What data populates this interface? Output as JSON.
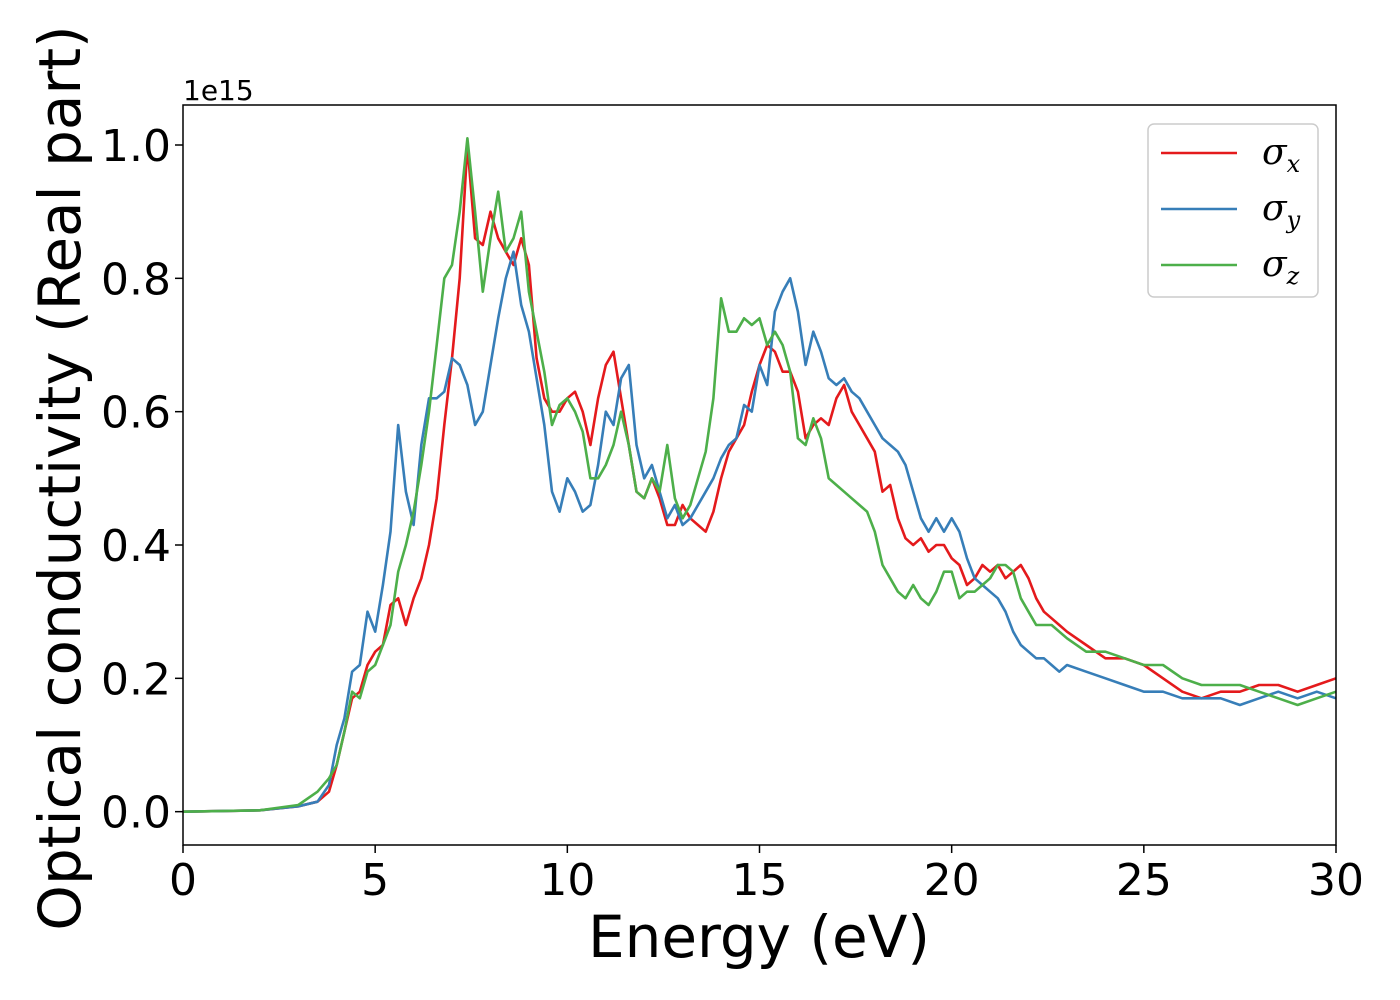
{
  "chart_data": {
    "type": "line",
    "xlabel": "Energy (eV)",
    "ylabel": "Optical conductivity (Real part)",
    "y_offset_label": "1e15",
    "xlim": [
      0,
      30
    ],
    "ylim": [
      -0.05,
      1.06
    ],
    "x_ticks": [
      0,
      5,
      10,
      15,
      20,
      25,
      30
    ],
    "y_ticks": [
      0.0,
      0.2,
      0.4,
      0.6,
      0.8,
      1.0
    ],
    "x_tick_labels": [
      "0",
      "5",
      "10",
      "15",
      "20",
      "25",
      "30"
    ],
    "y_tick_labels": [
      "0.0",
      "0.2",
      "0.4",
      "0.6",
      "0.8",
      "1.0"
    ],
    "grid": false,
    "legend_position": "top-right",
    "series": [
      {
        "name": "σ",
        "subscript": "x",
        "color": "#e41a1c",
        "x": [
          0,
          2,
          3,
          3.5,
          3.8,
          4.0,
          4.2,
          4.4,
          4.6,
          4.8,
          5.0,
          5.2,
          5.4,
          5.6,
          5.8,
          6.0,
          6.2,
          6.4,
          6.6,
          6.8,
          7.0,
          7.2,
          7.4,
          7.6,
          7.8,
          8.0,
          8.2,
          8.4,
          8.6,
          8.8,
          9.0,
          9.2,
          9.4,
          9.6,
          9.8,
          10.0,
          10.2,
          10.4,
          10.6,
          10.8,
          11.0,
          11.2,
          11.4,
          11.6,
          11.8,
          12.0,
          12.2,
          12.4,
          12.6,
          12.8,
          13.0,
          13.2,
          13.4,
          13.6,
          13.8,
          14.0,
          14.2,
          14.4,
          14.6,
          14.8,
          15.0,
          15.2,
          15.4,
          15.6,
          15.8,
          16.0,
          16.2,
          16.4,
          16.6,
          16.8,
          17.0,
          17.2,
          17.4,
          17.6,
          17.8,
          18.0,
          18.2,
          18.4,
          18.6,
          18.8,
          19.0,
          19.2,
          19.4,
          19.6,
          19.8,
          20.0,
          20.2,
          20.4,
          20.6,
          20.8,
          21.0,
          21.2,
          21.4,
          21.6,
          21.8,
          22.0,
          22.2,
          22.4,
          22.6,
          22.8,
          23.0,
          23.5,
          24.0,
          24.5,
          25.0,
          25.5,
          26.0,
          26.5,
          27.0,
          27.5,
          28.0,
          28.5,
          29.0,
          29.5,
          30.0
        ],
        "y": [
          0,
          0.002,
          0.008,
          0.015,
          0.03,
          0.07,
          0.12,
          0.17,
          0.18,
          0.22,
          0.24,
          0.25,
          0.31,
          0.32,
          0.28,
          0.32,
          0.35,
          0.4,
          0.47,
          0.58,
          0.68,
          0.8,
          1.0,
          0.86,
          0.85,
          0.9,
          0.86,
          0.84,
          0.82,
          0.86,
          0.82,
          0.68,
          0.62,
          0.6,
          0.6,
          0.62,
          0.63,
          0.6,
          0.55,
          0.62,
          0.67,
          0.69,
          0.62,
          0.55,
          0.48,
          0.47,
          0.5,
          0.47,
          0.43,
          0.43,
          0.46,
          0.44,
          0.43,
          0.42,
          0.45,
          0.5,
          0.54,
          0.56,
          0.58,
          0.63,
          0.67,
          0.7,
          0.69,
          0.66,
          0.66,
          0.63,
          0.56,
          0.58,
          0.59,
          0.58,
          0.62,
          0.64,
          0.6,
          0.58,
          0.56,
          0.54,
          0.48,
          0.49,
          0.44,
          0.41,
          0.4,
          0.41,
          0.39,
          0.4,
          0.4,
          0.38,
          0.37,
          0.34,
          0.35,
          0.37,
          0.36,
          0.37,
          0.35,
          0.36,
          0.37,
          0.35,
          0.32,
          0.3,
          0.29,
          0.28,
          0.27,
          0.25,
          0.23,
          0.23,
          0.22,
          0.2,
          0.18,
          0.17,
          0.18,
          0.18,
          0.19,
          0.19,
          0.18,
          0.19,
          0.2
        ]
      },
      {
        "name": "σ",
        "subscript": "y",
        "color": "#377eb8",
        "x": [
          0,
          2,
          3,
          3.5,
          3.8,
          4.0,
          4.2,
          4.4,
          4.6,
          4.8,
          5.0,
          5.2,
          5.4,
          5.6,
          5.8,
          6.0,
          6.2,
          6.4,
          6.6,
          6.8,
          7.0,
          7.2,
          7.4,
          7.6,
          7.8,
          8.0,
          8.2,
          8.4,
          8.6,
          8.8,
          9.0,
          9.2,
          9.4,
          9.6,
          9.8,
          10.0,
          10.2,
          10.4,
          10.6,
          10.8,
          11.0,
          11.2,
          11.4,
          11.6,
          11.8,
          12.0,
          12.2,
          12.4,
          12.6,
          12.8,
          13.0,
          13.2,
          13.4,
          13.6,
          13.8,
          14.0,
          14.2,
          14.4,
          14.6,
          14.8,
          15.0,
          15.2,
          15.4,
          15.6,
          15.8,
          16.0,
          16.2,
          16.4,
          16.6,
          16.8,
          17.0,
          17.2,
          17.4,
          17.6,
          17.8,
          18.0,
          18.2,
          18.4,
          18.6,
          18.8,
          19.0,
          19.2,
          19.4,
          19.6,
          19.8,
          20.0,
          20.2,
          20.4,
          20.6,
          20.8,
          21.0,
          21.2,
          21.4,
          21.6,
          21.8,
          22.0,
          22.2,
          22.4,
          22.6,
          22.8,
          23.0,
          23.5,
          24.0,
          24.5,
          25.0,
          25.5,
          26.0,
          26.5,
          27.0,
          27.5,
          28.0,
          28.5,
          29.0,
          29.5,
          30.0
        ],
        "y": [
          0,
          0.002,
          0.008,
          0.015,
          0.04,
          0.1,
          0.14,
          0.21,
          0.22,
          0.3,
          0.27,
          0.34,
          0.42,
          0.58,
          0.48,
          0.43,
          0.55,
          0.62,
          0.62,
          0.63,
          0.68,
          0.67,
          0.64,
          0.58,
          0.6,
          0.67,
          0.74,
          0.8,
          0.84,
          0.76,
          0.72,
          0.65,
          0.58,
          0.48,
          0.45,
          0.5,
          0.48,
          0.45,
          0.46,
          0.52,
          0.6,
          0.58,
          0.65,
          0.67,
          0.55,
          0.5,
          0.52,
          0.48,
          0.44,
          0.46,
          0.43,
          0.44,
          0.46,
          0.48,
          0.5,
          0.53,
          0.55,
          0.56,
          0.61,
          0.6,
          0.67,
          0.64,
          0.75,
          0.78,
          0.8,
          0.75,
          0.67,
          0.72,
          0.69,
          0.65,
          0.64,
          0.65,
          0.63,
          0.62,
          0.6,
          0.58,
          0.56,
          0.55,
          0.54,
          0.52,
          0.48,
          0.44,
          0.42,
          0.44,
          0.42,
          0.44,
          0.42,
          0.38,
          0.35,
          0.34,
          0.33,
          0.32,
          0.3,
          0.27,
          0.25,
          0.24,
          0.23,
          0.23,
          0.22,
          0.21,
          0.22,
          0.21,
          0.2,
          0.19,
          0.18,
          0.18,
          0.17,
          0.17,
          0.17,
          0.16,
          0.17,
          0.18,
          0.17,
          0.18,
          0.17
        ]
      },
      {
        "name": "σ",
        "subscript": "z",
        "color": "#4daf4a",
        "x": [
          0,
          2,
          3,
          3.5,
          3.8,
          4.0,
          4.2,
          4.4,
          4.6,
          4.8,
          5.0,
          5.2,
          5.4,
          5.6,
          5.8,
          6.0,
          6.2,
          6.4,
          6.6,
          6.8,
          7.0,
          7.2,
          7.4,
          7.6,
          7.8,
          8.0,
          8.2,
          8.4,
          8.6,
          8.8,
          9.0,
          9.2,
          9.4,
          9.6,
          9.8,
          10.0,
          10.2,
          10.4,
          10.6,
          10.8,
          11.0,
          11.2,
          11.4,
          11.6,
          11.8,
          12.0,
          12.2,
          12.4,
          12.6,
          12.8,
          13.0,
          13.2,
          13.4,
          13.6,
          13.8,
          14.0,
          14.2,
          14.4,
          14.6,
          14.8,
          15.0,
          15.2,
          15.4,
          15.6,
          15.8,
          16.0,
          16.2,
          16.4,
          16.6,
          16.8,
          17.0,
          17.2,
          17.4,
          17.6,
          17.8,
          18.0,
          18.2,
          18.4,
          18.6,
          18.8,
          19.0,
          19.2,
          19.4,
          19.6,
          19.8,
          20.0,
          20.2,
          20.4,
          20.6,
          20.8,
          21.0,
          21.2,
          21.4,
          21.6,
          21.8,
          22.0,
          22.2,
          22.4,
          22.6,
          22.8,
          23.0,
          23.5,
          24.0,
          24.5,
          25.0,
          25.5,
          26.0,
          26.5,
          27.0,
          27.5,
          28.0,
          28.5,
          29.0,
          29.5,
          30.0
        ],
        "y": [
          0,
          0.002,
          0.01,
          0.03,
          0.05,
          0.07,
          0.12,
          0.18,
          0.17,
          0.21,
          0.22,
          0.25,
          0.28,
          0.36,
          0.4,
          0.45,
          0.52,
          0.6,
          0.7,
          0.8,
          0.82,
          0.9,
          1.01,
          0.9,
          0.78,
          0.86,
          0.93,
          0.84,
          0.86,
          0.9,
          0.78,
          0.72,
          0.66,
          0.58,
          0.61,
          0.62,
          0.6,
          0.57,
          0.5,
          0.5,
          0.52,
          0.55,
          0.6,
          0.55,
          0.48,
          0.47,
          0.5,
          0.48,
          0.55,
          0.47,
          0.44,
          0.46,
          0.5,
          0.54,
          0.62,
          0.77,
          0.72,
          0.72,
          0.74,
          0.73,
          0.74,
          0.7,
          0.72,
          0.7,
          0.66,
          0.56,
          0.55,
          0.59,
          0.56,
          0.5,
          0.49,
          0.48,
          0.47,
          0.46,
          0.45,
          0.42,
          0.37,
          0.35,
          0.33,
          0.32,
          0.34,
          0.32,
          0.31,
          0.33,
          0.36,
          0.36,
          0.32,
          0.33,
          0.33,
          0.34,
          0.35,
          0.37,
          0.37,
          0.36,
          0.32,
          0.3,
          0.28,
          0.28,
          0.28,
          0.27,
          0.26,
          0.24,
          0.24,
          0.23,
          0.22,
          0.22,
          0.2,
          0.19,
          0.19,
          0.19,
          0.18,
          0.17,
          0.16,
          0.17,
          0.18
        ]
      }
    ]
  }
}
